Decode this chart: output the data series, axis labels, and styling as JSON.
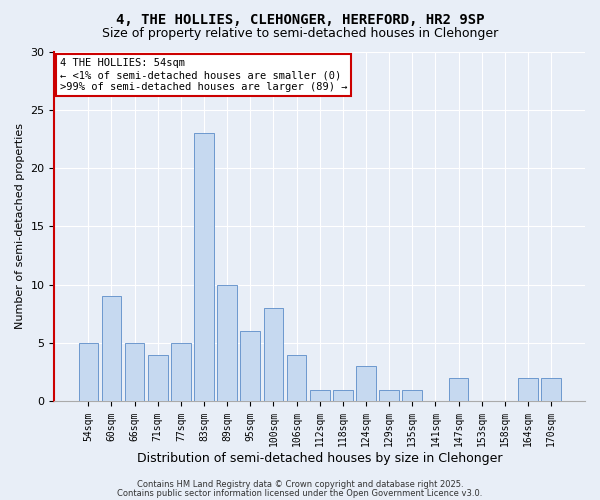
{
  "title1": "4, THE HOLLIES, CLEHONGER, HEREFORD, HR2 9SP",
  "title2": "Size of property relative to semi-detached houses in Clehonger",
  "xlabel": "Distribution of semi-detached houses by size in Clehonger",
  "ylabel": "Number of semi-detached properties",
  "categories": [
    "54sqm",
    "60sqm",
    "66sqm",
    "71sqm",
    "77sqm",
    "83sqm",
    "89sqm",
    "95sqm",
    "100sqm",
    "106sqm",
    "112sqm",
    "118sqm",
    "124sqm",
    "129sqm",
    "135sqm",
    "141sqm",
    "147sqm",
    "153sqm",
    "158sqm",
    "164sqm",
    "170sqm"
  ],
  "values": [
    5,
    9,
    5,
    4,
    5,
    23,
    10,
    6,
    8,
    4,
    1,
    1,
    3,
    1,
    1,
    0,
    2,
    0,
    0,
    2,
    2
  ],
  "bar_color": "#c6d9f0",
  "bar_edge_color": "#5b8cc8",
  "highlight_color": "#cc0000",
  "annotation_title": "4 THE HOLLIES: 54sqm",
  "annotation_line1": "← <1% of semi-detached houses are smaller (0)",
  "annotation_line2": ">99% of semi-detached houses are larger (89) →",
  "annotation_box_color": "#ffffff",
  "annotation_box_edge": "#cc0000",
  "ylim": [
    0,
    30
  ],
  "yticks": [
    0,
    5,
    10,
    15,
    20,
    25,
    30
  ],
  "background_color": "#e8eef7",
  "footer_line1": "Contains HM Land Registry data © Crown copyright and database right 2025.",
  "footer_line2": "Contains public sector information licensed under the Open Government Licence v3.0.",
  "title_fontsize": 10,
  "subtitle_fontsize": 9,
  "tick_fontsize": 7,
  "ylabel_fontsize": 8,
  "xlabel_fontsize": 9,
  "annotation_fontsize": 7.5,
  "footer_fontsize": 6
}
